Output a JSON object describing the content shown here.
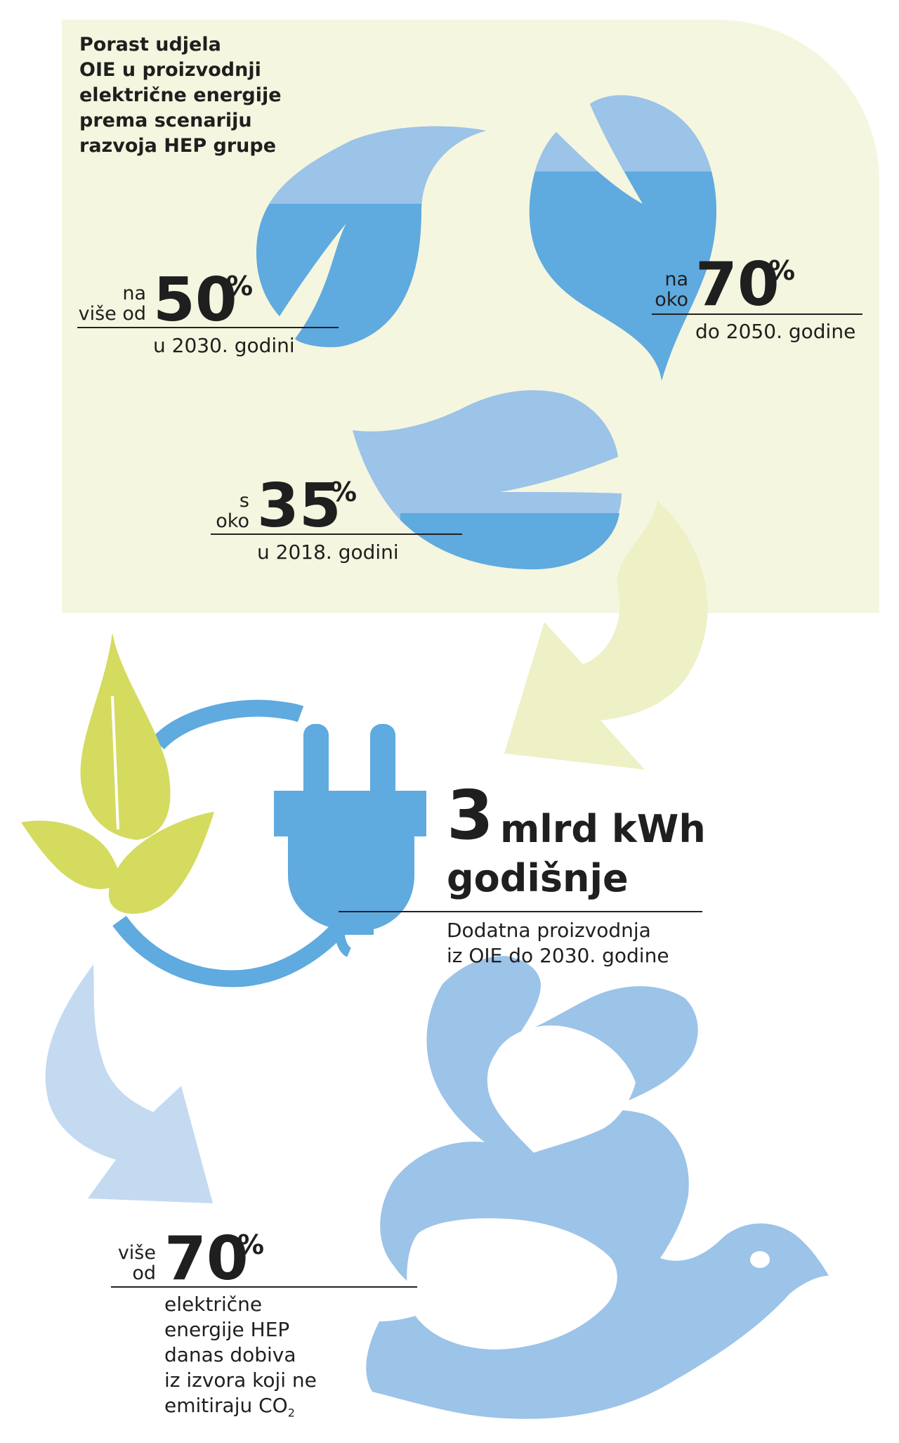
{
  "title": [
    "Porast udjela",
    "OIE u proizvodnji",
    "električne energije",
    "prema scenariju",
    "razvoja HEP grupe"
  ],
  "stats": {
    "s2030": {
      "prefix": [
        "na",
        "više od"
      ],
      "value": "50",
      "unit": "%",
      "caption": "u 2030. godini"
    },
    "s2050": {
      "prefix": [
        "na",
        "oko"
      ],
      "value": "70",
      "unit": "%",
      "caption": "do 2050. godine"
    },
    "s2018": {
      "prefix": [
        "s",
        "oko"
      ],
      "value": "35",
      "unit": "%",
      "caption": "u 2018. godini"
    }
  },
  "production": {
    "value": "3",
    "unit": "mlrd kWh",
    "period": "godišnje",
    "caption": [
      "Dodatna proizvodnja",
      "iz OIE do 2030. godine"
    ]
  },
  "co2": {
    "prefix": [
      "više",
      "od"
    ],
    "value": "70",
    "unit": "%",
    "caption": [
      "električne",
      "energije HEP",
      "danas dobiva",
      "iz izvora koji ne"
    ],
    "caption_last": "emitiraju CO",
    "caption_sub": "2"
  },
  "icons": [
    "water-leaf-icon",
    "plug-icon",
    "plant-leaves-icon",
    "curved-arrow-icon",
    "dove-icon"
  ],
  "colors": {
    "panel": "#f5f6df",
    "blue_dark": "#5faadf",
    "blue_light": "#9cc3e8",
    "green": "#d4db5f",
    "green_pale": "#eef0c6",
    "blue_pale": "#c3daf1",
    "plug": "#5faadf"
  }
}
